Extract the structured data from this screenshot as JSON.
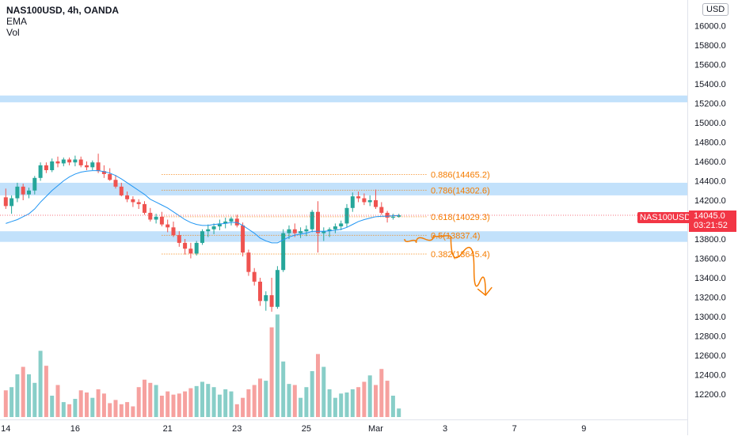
{
  "legend": {
    "symbol_line": "NAS100USD, 4h, OANDA",
    "indicators": [
      "EMA",
      "Vol"
    ]
  },
  "currency_badge": "USD",
  "price_tag": {
    "symbol": "NAS100USD",
    "price": "14045.0",
    "countdown": "03:21:52",
    "color": "#f23645"
  },
  "chart_data": {
    "type": "candlestick",
    "title": "",
    "y_axis": {
      "ticks": [
        12200,
        12400,
        12600,
        12800,
        13000,
        13200,
        13400,
        13600,
        13800,
        14000,
        14200,
        14400,
        14600,
        14800,
        15000,
        15200,
        15400,
        15600,
        15800,
        16000
      ],
      "tick_labels": [
        "12200.0",
        "12400.0",
        "12600.0",
        "12800.0",
        "13000.0",
        "13200.0",
        "13400.0",
        "13600.0",
        "13800.0",
        "14000.0",
        "14200.0",
        "14400.0",
        "14600.0",
        "14800.0",
        "15000.0",
        "15200.0",
        "15400.0",
        "15600.0",
        "15800.0",
        "16000.0"
      ],
      "range": [
        12000,
        16200
      ]
    },
    "x_axis": {
      "labels": [
        {
          "label": "14",
          "slot": 0
        },
        {
          "label": "16",
          "slot": 12
        },
        {
          "label": "21",
          "slot": 28
        },
        {
          "label": "23",
          "slot": 40
        },
        {
          "label": "25",
          "slot": 52
        },
        {
          "label": "Mar",
          "slot": 64
        },
        {
          "label": "3",
          "slot": 76
        },
        {
          "label": "7",
          "slot": 88
        },
        {
          "label": "9",
          "slot": 100
        },
        {
          "label": "14",
          "slot": 118
        }
      ]
    },
    "candles": [
      [
        14230,
        14320,
        14110,
        14140
      ],
      [
        14140,
        14250,
        14060,
        14220
      ],
      [
        14220,
        14380,
        14180,
        14340
      ],
      [
        14340,
        14370,
        14200,
        14260
      ],
      [
        14260,
        14330,
        14220,
        14300
      ],
      [
        14300,
        14450,
        14260,
        14430
      ],
      [
        14430,
        14590,
        14400,
        14560
      ],
      [
        14560,
        14590,
        14480,
        14510
      ],
      [
        14510,
        14630,
        14490,
        14600
      ],
      [
        14600,
        14650,
        14540,
        14580
      ],
      [
        14580,
        14640,
        14550,
        14620
      ],
      [
        14620,
        14640,
        14560,
        14590
      ],
      [
        14590,
        14660,
        14550,
        14620
      ],
      [
        14620,
        14650,
        14540,
        14560
      ],
      [
        14560,
        14600,
        14510,
        14540
      ],
      [
        14540,
        14610,
        14510,
        14590
      ],
      [
        14590,
        14680,
        14480,
        14500
      ],
      [
        14500,
        14560,
        14430,
        14470
      ],
      [
        14470,
        14530,
        14400,
        14410
      ],
      [
        14410,
        14460,
        14320,
        14340
      ],
      [
        14340,
        14380,
        14240,
        14250
      ],
      [
        14250,
        14290,
        14180,
        14210
      ],
      [
        14210,
        14240,
        14130,
        14180
      ],
      [
        14180,
        14210,
        14110,
        14160
      ],
      [
        14160,
        14190,
        14050,
        14070
      ],
      [
        14070,
        14120,
        13980,
        14000
      ],
      [
        14000,
        14060,
        13960,
        14030
      ],
      [
        14030,
        14080,
        13930,
        13950
      ],
      [
        13950,
        14000,
        13870,
        13920
      ],
      [
        13920,
        13980,
        13820,
        13840
      ],
      [
        13840,
        13880,
        13720,
        13760
      ],
      [
        13760,
        13800,
        13640,
        13700
      ],
      [
        13700,
        13760,
        13600,
        13650
      ],
      [
        13650,
        13780,
        13630,
        13760
      ],
      [
        13760,
        13900,
        13740,
        13880
      ],
      [
        13880,
        13950,
        13820,
        13900
      ],
      [
        13900,
        13960,
        13850,
        13930
      ],
      [
        13930,
        14000,
        13890,
        13960
      ],
      [
        13960,
        14020,
        13910,
        13980
      ],
      [
        13980,
        14030,
        13940,
        14010
      ],
      [
        14010,
        14050,
        13920,
        13940
      ],
      [
        13940,
        13970,
        13620,
        13660
      ],
      [
        13660,
        13690,
        13420,
        13460
      ],
      [
        13460,
        13500,
        13320,
        13360
      ],
      [
        13360,
        13400,
        13110,
        13160
      ],
      [
        13160,
        13260,
        13060,
        13220
      ],
      [
        13220,
        13400,
        13050,
        13100
      ],
      [
        13100,
        13520,
        13080,
        13480
      ],
      [
        13480,
        13900,
        13460,
        13860
      ],
      [
        13860,
        13940,
        13800,
        13900
      ],
      [
        13900,
        13960,
        13820,
        13860
      ],
      [
        13860,
        13920,
        13810,
        13880
      ],
      [
        13880,
        13940,
        13830,
        13900
      ],
      [
        13900,
        14100,
        13870,
        14080
      ],
      [
        14080,
        14190,
        13660,
        13860
      ],
      [
        13860,
        13920,
        13780,
        13880
      ],
      [
        13880,
        13920,
        13820,
        13900
      ],
      [
        13900,
        13960,
        13860,
        13930
      ],
      [
        13930,
        13990,
        13890,
        13960
      ],
      [
        13960,
        14160,
        13920,
        14120
      ],
      [
        14120,
        14280,
        14080,
        14240
      ],
      [
        14240,
        14290,
        14180,
        14220
      ],
      [
        14220,
        14270,
        14150,
        14180
      ],
      [
        14180,
        14250,
        14140,
        14200
      ],
      [
        14200,
        14310,
        14110,
        14130
      ],
      [
        14130,
        14180,
        14050,
        14070
      ],
      [
        14070,
        14090,
        13970,
        14020
      ],
      [
        14020,
        14060,
        14000,
        14030
      ],
      [
        14030,
        14060,
        14020,
        14045
      ]
    ],
    "ema": [
      13960,
      13980,
      14000,
      14030,
      14060,
      14110,
      14180,
      14240,
      14300,
      14350,
      14400,
      14440,
      14470,
      14490,
      14500,
      14505,
      14505,
      14495,
      14480,
      14455,
      14420,
      14380,
      14340,
      14300,
      14260,
      14210,
      14180,
      14150,
      14120,
      14080,
      14040,
      14000,
      13970,
      13950,
      13940,
      13940,
      13950,
      13955,
      13960,
      13970,
      13970,
      13940,
      13900,
      13860,
      13810,
      13780,
      13760,
      13760,
      13790,
      13820,
      13840,
      13850,
      13860,
      13880,
      13880,
      13880,
      13885,
      13890,
      13900,
      13920,
      13950,
      13980,
      14000,
      14015,
      14030,
      14035,
      14035,
      14040,
      14043
    ],
    "volume": [
      0.25,
      0.28,
      0.4,
      0.47,
      0.4,
      0.32,
      0.62,
      0.48,
      0.2,
      0.3,
      0.14,
      0.12,
      0.17,
      0.25,
      0.23,
      0.18,
      0.26,
      0.22,
      0.13,
      0.16,
      0.12,
      0.14,
      0.1,
      0.28,
      0.35,
      0.32,
      0.3,
      0.2,
      0.24,
      0.21,
      0.22,
      0.24,
      0.27,
      0.29,
      0.33,
      0.31,
      0.28,
      0.21,
      0.26,
      0.24,
      0.12,
      0.18,
      0.26,
      0.3,
      0.36,
      0.34,
      0.84,
      0.96,
      0.52,
      0.31,
      0.3,
      0.18,
      0.28,
      0.43,
      0.59,
      0.47,
      0.26,
      0.18,
      0.22,
      0.23,
      0.26,
      0.28,
      0.33,
      0.39,
      0.3,
      0.45,
      0.34,
      0.2,
      0.08
    ],
    "volume_colors": {
      "up": "#26a69a",
      "down": "#ef5350"
    },
    "candle_colors": {
      "up": "#26a69a",
      "down": "#ef5350"
    },
    "ema_color": "#2196f3",
    "zones": [
      {
        "from": 15210,
        "to": 15280,
        "color": "#bbdefb"
      },
      {
        "from": 14250,
        "to": 14380,
        "color": "#bbdefb"
      },
      {
        "from": 13770,
        "to": 13880,
        "color": "#bbdefb"
      }
    ],
    "fib_levels": [
      {
        "ratio": "0.886",
        "value": 14465.2,
        "label": "0.886(14465.2)"
      },
      {
        "ratio": "0.786",
        "value": 14302.6,
        "label": "0.786(14302.6)"
      },
      {
        "ratio": "0.618",
        "value": 14029.3,
        "label": "0.618(14029.3)"
      },
      {
        "ratio": "0.5",
        "value": 13837.4,
        "label": "0.5(13837.4)"
      },
      {
        "ratio": "0.382",
        "value": 13645.4,
        "label": "0.382(13645.4)"
      }
    ],
    "fib_color": "#f57c00",
    "fib_start_slot": 27,
    "projection": {
      "color": "#f57c00",
      "points": [
        {
          "slot": 69,
          "price": 13800
        },
        {
          "slot": 71,
          "price": 13760
        },
        {
          "slot": 74,
          "price": 13840
        },
        {
          "slot": 77,
          "price": 13820
        },
        {
          "slot": 81,
          "price": 13500
        },
        {
          "slot": 83,
          "price": 13220
        }
      ]
    }
  }
}
